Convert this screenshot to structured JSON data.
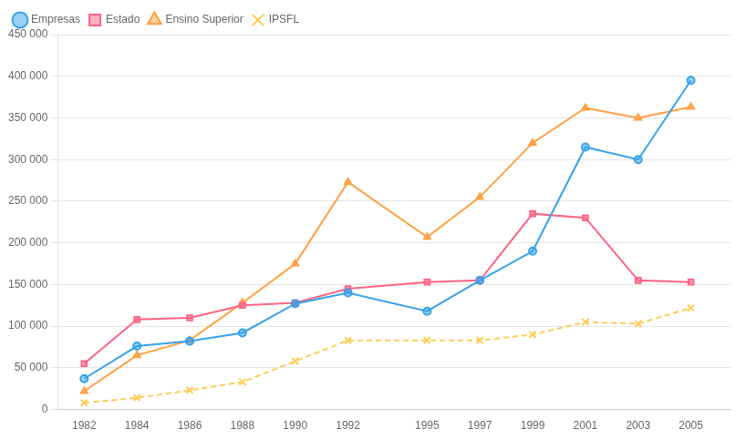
{
  "chart_data": {
    "type": "line",
    "x": [
      1982,
      1984,
      1986,
      1988,
      1990,
      1992,
      1995,
      1997,
      1999,
      2001,
      2003,
      2005
    ],
    "xlim": [
      1981,
      2006.5
    ],
    "xticks": [
      1982,
      1984,
      1986,
      1988,
      1990,
      1992,
      1995,
      1997,
      1999,
      2001,
      2003,
      2005
    ],
    "ylim": [
      0,
      450000
    ],
    "yticks": [
      0,
      {
        "value": 50000,
        "label": "50 000"
      },
      {
        "value": 100000,
        "label": "100 000"
      },
      {
        "value": 150000,
        "label": "150 000"
      },
      {
        "value": 200000,
        "label": "200 000"
      },
      {
        "value": 250000,
        "label": "250 000"
      },
      {
        "value": 300000,
        "label": "300 000"
      },
      {
        "value": 350000,
        "label": "350 000"
      },
      {
        "value": 400000,
        "label": "400 000"
      },
      {
        "value": 450000,
        "label": "450 000"
      }
    ],
    "grid": true,
    "legend": "upper left",
    "series": [
      {
        "name": "Empresas",
        "marker": "circle",
        "line_style": "solid",
        "values": [
          37000,
          76000,
          82000,
          92000,
          127000,
          140000,
          118000,
          155000,
          190000,
          315000,
          300000,
          395000
        ]
      },
      {
        "name": "Estado",
        "marker": "square",
        "line_style": "solid",
        "values": [
          55000,
          108000,
          110000,
          125000,
          128000,
          145000,
          153000,
          155000,
          235000,
          230000,
          155000,
          153000
        ]
      },
      {
        "name": "Ensino Superior",
        "marker": "triangle",
        "line_style": "solid",
        "values": [
          22000,
          65000,
          83000,
          128000,
          175000,
          273000,
          207000,
          255000,
          320000,
          362000,
          350000,
          363000
        ]
      },
      {
        "name": "IPSFL",
        "marker": "x",
        "line_style": "dashed",
        "values": [
          8000,
          14000,
          23000,
          33000,
          58000,
          83000,
          83000,
          83000,
          90000,
          105000,
          103000,
          122000
        ]
      }
    ]
  }
}
